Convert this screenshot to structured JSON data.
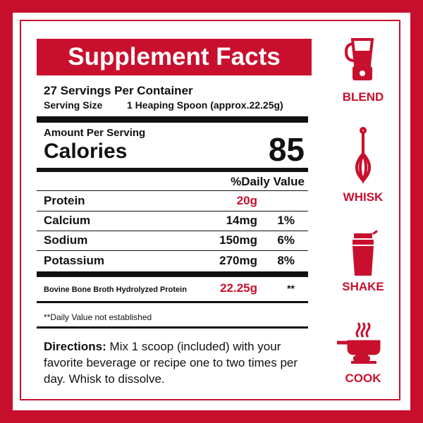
{
  "header": {
    "title": "Supplement Facts"
  },
  "servings_per_container": "27 Servings Per Container",
  "serving_size": {
    "label": "Serving Size",
    "value": "1 Heaping Spoon (approx.22.25g)"
  },
  "amount_per_serving": "Amount Per Serving",
  "calories": {
    "label": "Calories",
    "value": "85"
  },
  "daily_value_header": "%Daily Value",
  "nutrients": [
    {
      "name": "Protein",
      "amount": "20g"
    },
    {
      "name": "Calcium",
      "amount": "14mg",
      "dv": "1%"
    },
    {
      "name": "Sodium",
      "amount": "150mg",
      "dv": "6%"
    },
    {
      "name": "Potassium",
      "amount": "270mg",
      "dv": "8%"
    }
  ],
  "ingredient": {
    "name": "Bovine Bone Broth Hydrolyzed Protein",
    "amount": "22.25g",
    "dv": "**"
  },
  "footnote": "**Daily Value not established",
  "directions": {
    "label": "Directions:",
    "text": "Mix 1 scoop (included) with your favorite beverage or recipe one to two times per day. Whisk to dissolve."
  },
  "steps": [
    "BLEND",
    "WHISK",
    "SHAKE",
    "COOK"
  ]
}
